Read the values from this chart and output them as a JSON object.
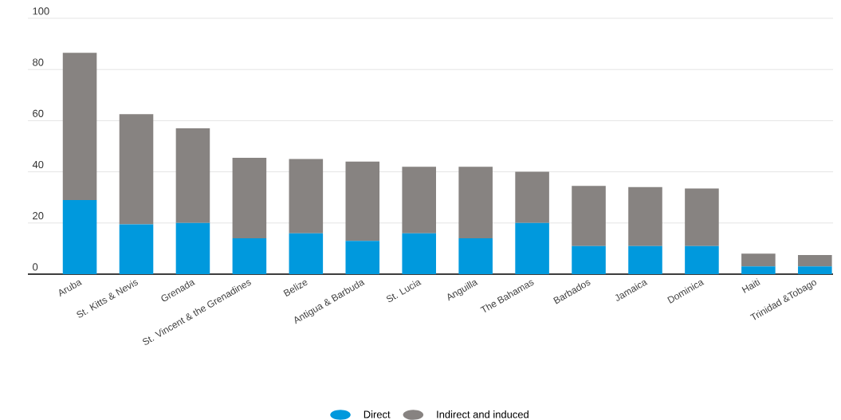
{
  "chart_data": {
    "type": "bar",
    "stacked": true,
    "categories": [
      "Aruba",
      "St. Kitts & Nevis",
      "Grenada",
      "St. Vincent & the Grenadines",
      "Belize",
      "Antigua & Barbuda",
      "St. Lucia",
      "Anguilla",
      "The Bahamas",
      "Barbados",
      "Jamaica",
      "Dominica",
      "Haiti",
      "Trinidad &Tobago"
    ],
    "series": [
      {
        "name": "Direct",
        "color": "#0099dd",
        "values": [
          29,
          19.5,
          20,
          14,
          16,
          13,
          16,
          14,
          20,
          11,
          11,
          11,
          3,
          3
        ]
      },
      {
        "name": "Indirect and induced",
        "color": "#878381",
        "values": [
          57.5,
          43,
          37,
          31.5,
          29,
          31,
          26,
          28,
          20,
          23.5,
          23,
          22.5,
          5,
          4.5
        ]
      }
    ],
    "ylim": [
      0,
      100
    ],
    "yticks": [
      0,
      20,
      40,
      60,
      80,
      100
    ],
    "grid": "y",
    "legend": "bottom"
  }
}
